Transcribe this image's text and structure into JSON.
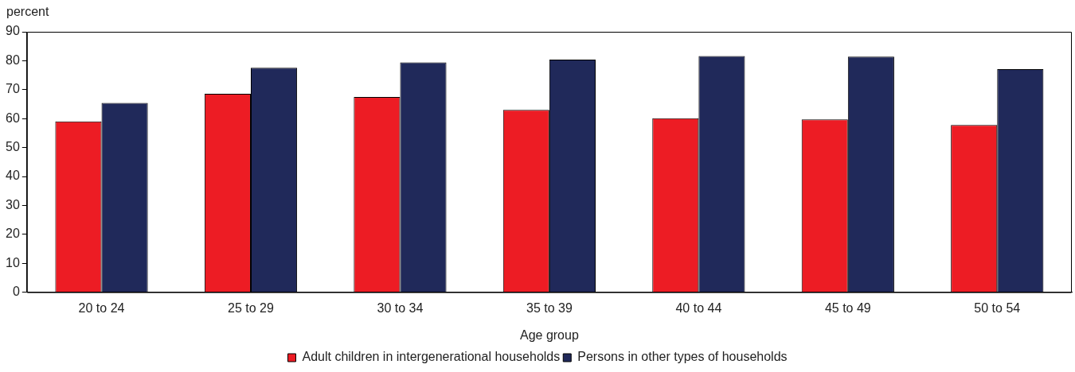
{
  "chart_data": {
    "type": "bar",
    "xlabel": "Age group",
    "ylabel": "percent",
    "categories": [
      "20 to 24",
      "25 to 29",
      "30 to 34",
      "35 to 39",
      "40 to 44",
      "45 to 49",
      "50 to 54"
    ],
    "series": [
      {
        "name": "Adult children in intergenerational households",
        "color": "#ed1c24",
        "values": [
          59.0,
          68.6,
          67.5,
          63.0,
          60.1,
          59.7,
          57.8
        ]
      },
      {
        "name": "Persons in other types of households",
        "color": "#20295a",
        "values": [
          65.4,
          77.6,
          79.4,
          80.4,
          81.6,
          81.4,
          77.1
        ]
      }
    ],
    "ylim": [
      0,
      90
    ],
    "yticks": [
      0,
      10,
      20,
      30,
      40,
      50,
      60,
      70,
      80,
      90
    ],
    "grid": false,
    "legend": "bottom"
  }
}
